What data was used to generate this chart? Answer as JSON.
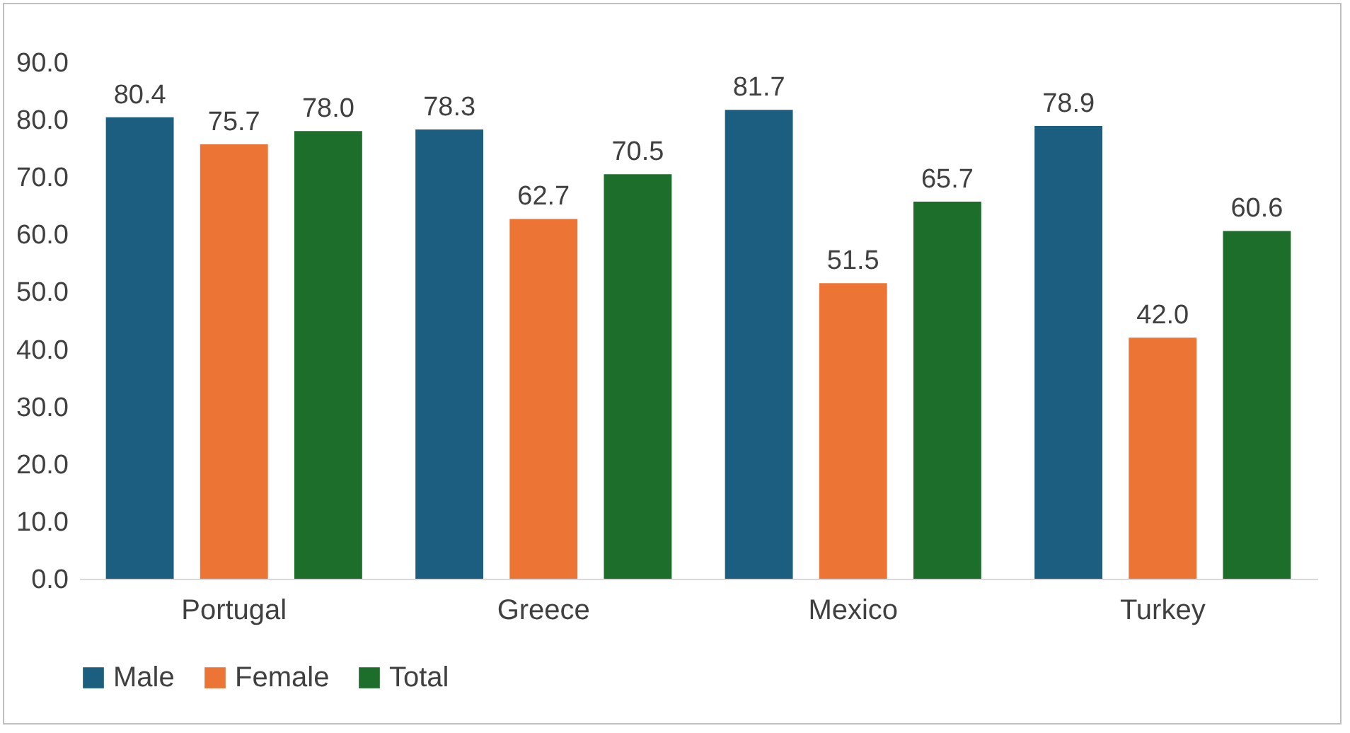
{
  "chart_data": {
    "type": "bar",
    "categories": [
      "Portugal",
      "Greece",
      "Mexico",
      "Turkey"
    ],
    "series": [
      {
        "name": "Male",
        "color": "#1b5e80",
        "values": [
          80.4,
          78.3,
          81.7,
          78.9
        ],
        "value_labels": [
          "80.4",
          "78.3",
          "81.7",
          "78.9"
        ]
      },
      {
        "name": "Female",
        "color": "#ec7434",
        "values": [
          75.7,
          62.7,
          51.5,
          42.0
        ],
        "value_labels": [
          "75.7",
          "62.7",
          "51.5",
          "42.0"
        ]
      },
      {
        "name": "Total",
        "color": "#1e6e2b",
        "values": [
          78.0,
          70.5,
          65.7,
          60.6
        ],
        "value_labels": [
          "78.0",
          "70.5",
          "65.7",
          "60.6"
        ]
      }
    ],
    "ylim": [
      0,
      90
    ],
    "yticks": [
      {
        "value": 0,
        "label": "0.0"
      },
      {
        "value": 10,
        "label": "10.0"
      },
      {
        "value": 20,
        "label": "20.0"
      },
      {
        "value": 30,
        "label": "30.0"
      },
      {
        "value": 40,
        "label": "40.0"
      },
      {
        "value": 50,
        "label": "50.0"
      },
      {
        "value": 60,
        "label": "60.0"
      },
      {
        "value": 70,
        "label": "70.0"
      },
      {
        "value": 80,
        "label": "80.0"
      },
      {
        "value": 90,
        "label": "90.0"
      }
    ],
    "legend": "bottom",
    "grid": false
  }
}
